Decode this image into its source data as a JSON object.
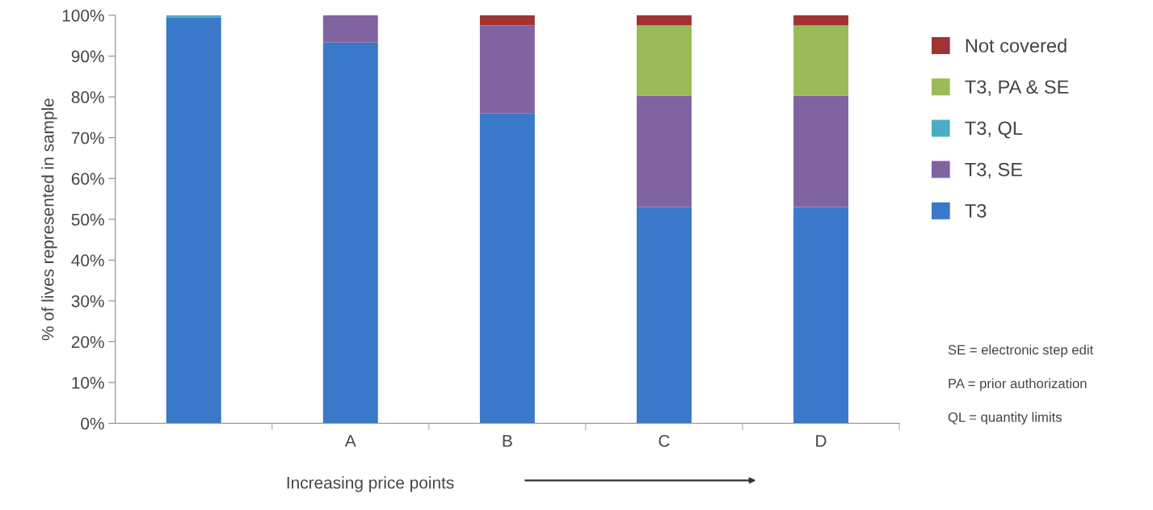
{
  "chart_data": {
    "type": "bar",
    "stacked": true,
    "categories": [
      null,
      "A",
      "B",
      "C",
      "D"
    ],
    "xlabel": "Increasing price points",
    "ylabel": "% of lives represented in sample",
    "ylim": [
      0,
      100
    ],
    "yticks": [
      {
        "value": 0,
        "label": "0%"
      },
      {
        "value": 10,
        "label": "10%"
      },
      {
        "value": 20,
        "label": "20%"
      },
      {
        "value": 30,
        "label": "30%"
      },
      {
        "value": 40,
        "label": "40%"
      },
      {
        "value": 50,
        "label": "50%"
      },
      {
        "value": 60,
        "label": "60%"
      },
      {
        "value": 70,
        "label": "70%"
      },
      {
        "value": 80,
        "label": "80%"
      },
      {
        "value": 90,
        "label": "90%"
      },
      {
        "value": 100,
        "label": "100%"
      }
    ],
    "series": [
      {
        "name": "T3",
        "color": "#3a78c9",
        "values": [
          99.5,
          93.3,
          76,
          53,
          53
        ]
      },
      {
        "name": "T3, SE",
        "color": "#8064a2",
        "values": [
          0,
          6.7,
          21.5,
          27.3,
          27.3
        ]
      },
      {
        "name": "T3, QL",
        "color": "#4bacc6",
        "values": [
          0.5,
          0,
          0,
          0,
          0
        ]
      },
      {
        "name": "T3, PA & SE",
        "color": "#9bbb59",
        "values": [
          0,
          0,
          0,
          17.2,
          17.2
        ]
      },
      {
        "name": "Not covered",
        "color": "#a33333",
        "values": [
          0,
          0,
          2.5,
          2.5,
          2.5
        ]
      }
    ],
    "legend": "right",
    "grid": false,
    "annotations": [
      "SE = electronic step edit",
      "PA = prior authorization",
      "QL = quantity limits"
    ]
  }
}
